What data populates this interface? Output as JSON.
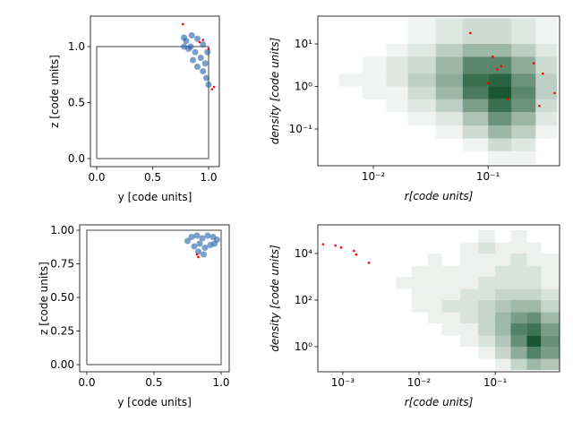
{
  "chart_data": [
    {
      "type": "scatter",
      "xlabel": "y [code units]",
      "ylabel": "z [code units]",
      "xlim": [
        -0.056,
        1.096
      ],
      "ylim": [
        -0.072,
        1.272
      ],
      "xticks": [
        {
          "value": 0,
          "label": "0.0"
        },
        0.5,
        {
          "value": 1,
          "label": "1.0"
        }
      ],
      "yticks": [
        {
          "value": 0,
          "label": "0.0"
        },
        0.5,
        {
          "value": 1,
          "label": "1.0"
        }
      ],
      "series": [
        {
          "style": "line",
          "color": "#808080",
          "x": [
            0,
            1,
            1,
            0,
            0
          ],
          "y": [
            0,
            0,
            1,
            1,
            0
          ]
        },
        {
          "style": "points",
          "color": "#1f5fa8",
          "x": [
            0.78,
            0.8,
            0.85,
            0.9,
            0.95,
            0.82,
            0.88,
            0.93,
            0.97,
            0.9,
            0.95,
            0.98,
            1.0,
            0.86,
            0.84,
            0.99,
            0.78
          ],
          "y": [
            1.08,
            1.05,
            1.1,
            1.07,
            1.02,
            0.98,
            0.95,
            0.9,
            0.85,
            0.82,
            0.78,
            0.72,
            0.66,
            0.88,
            1.0,
            0.95,
            1.0
          ]
        },
        {
          "style": "points",
          "color": "#ff0000",
          "x": [
            0.77,
            0.95,
            0.92,
            1.03,
            1.05,
            1.0
          ],
          "y": [
            1.2,
            1.06,
            1.04,
            0.62,
            0.64,
            0.98
          ]
        }
      ]
    },
    {
      "type": "hist2d",
      "xlabel": "r[code units]",
      "ylabel": "density [code units]",
      "axis_label_style": "italic",
      "xscale": "log",
      "yscale": "log",
      "xlim": [
        0.00328,
        0.42
      ],
      "ylim": [
        0.0137,
        45
      ],
      "xticks": [
        {
          "value": 0.01,
          "label": "10⁻²"
        },
        {
          "value": 0.1,
          "label": "10⁻¹"
        }
      ],
      "yticks": [
        {
          "value": 0.1,
          "label": "10⁻¹"
        },
        {
          "value": 1,
          "label": "10⁰"
        },
        {
          "value": 10,
          "label": "10¹"
        }
      ],
      "color": "#00441b",
      "xbins": [
        0.0035,
        0.005,
        0.008,
        0.013,
        0.02,
        0.035,
        0.06,
        0.1,
        0.16,
        0.26,
        0.4
      ],
      "ybins": [
        0.015,
        0.03,
        0.06,
        0.12,
        0.25,
        0.5,
        1,
        2,
        5,
        10,
        40
      ],
      "counts": [
        [
          0,
          0,
          0,
          0,
          0,
          0,
          0,
          1,
          1,
          0
        ],
        [
          0,
          0,
          0,
          0,
          0,
          0,
          1,
          3,
          2,
          0
        ],
        [
          0,
          0,
          0,
          0,
          0,
          1,
          3,
          6,
          4,
          1
        ],
        [
          0,
          0,
          0,
          0,
          1,
          2,
          5,
          9,
          6,
          2
        ],
        [
          0,
          0,
          0,
          1,
          2,
          4,
          8,
          12,
          9,
          3
        ],
        [
          0,
          0,
          1,
          1,
          3,
          6,
          11,
          14,
          10,
          4
        ],
        [
          0,
          1,
          1,
          2,
          4,
          7,
          12,
          13,
          9,
          4
        ],
        [
          0,
          0,
          1,
          2,
          3,
          6,
          10,
          10,
          7,
          3
        ],
        [
          0,
          0,
          0,
          1,
          2,
          4,
          6,
          6,
          4,
          2
        ],
        [
          0,
          0,
          0,
          0,
          1,
          2,
          3,
          3,
          2,
          1
        ]
      ],
      "series": [
        {
          "style": "points",
          "color": "#ff0000",
          "x": [
            0.07,
            0.11,
            0.12,
            0.13,
            0.1,
            0.15,
            0.3,
            0.25,
            0.38,
            0.28
          ],
          "y": [
            18,
            5,
            2.5,
            3,
            1.2,
            0.5,
            2,
            3.5,
            0.7,
            0.35
          ]
        }
      ]
    },
    {
      "type": "scatter",
      "xlabel": "y [code units]",
      "ylabel": "z [code units]",
      "xlim": [
        -0.053,
        1.06
      ],
      "ylim": [
        -0.053,
        1.04
      ],
      "xticks": [
        {
          "value": 0,
          "label": "0.0"
        },
        0.5,
        {
          "value": 1,
          "label": "1.0"
        }
      ],
      "yticks": [
        {
          "value": 0,
          "label": "0.00"
        },
        0.25,
        {
          "value": 0.5,
          "label": "0.50"
        },
        0.75,
        {
          "value": 1,
          "label": "1.00"
        }
      ],
      "series": [
        {
          "style": "line",
          "color": "#808080",
          "x": [
            0,
            1,
            1,
            0,
            0
          ],
          "y": [
            0,
            0,
            1,
            1,
            0
          ]
        },
        {
          "style": "points",
          "color": "#1f5fa8",
          "x": [
            0.75,
            0.78,
            0.82,
            0.86,
            0.9,
            0.94,
            0.97,
            0.8,
            0.84,
            0.88,
            0.92,
            0.83,
            0.87,
            0.95
          ],
          "y": [
            0.92,
            0.95,
            0.96,
            0.94,
            0.96,
            0.95,
            0.93,
            0.88,
            0.9,
            0.87,
            0.89,
            0.84,
            0.82,
            0.9
          ]
        },
        {
          "style": "points",
          "color": "#ff0000",
          "x": [
            0.82,
            0.83
          ],
          "y": [
            0.82,
            0.8
          ]
        }
      ]
    },
    {
      "type": "hist2d",
      "xlabel": "r[code units]",
      "ylabel": "density [code units]",
      "axis_label_style": "italic",
      "xscale": "log",
      "yscale": "log",
      "xlim": [
        0.00047,
        0.7
      ],
      "ylim": [
        0.084,
        170000
      ],
      "xticks": [
        {
          "value": 0.001,
          "label": "10⁻³"
        },
        {
          "value": 0.01,
          "label": "10⁻²"
        },
        {
          "value": 0.1,
          "label": "10⁻¹"
        }
      ],
      "yticks": [
        {
          "value": 1,
          "label": "10⁰"
        },
        {
          "value": 100,
          "label": "10²"
        },
        {
          "value": 10000,
          "label": "10⁴"
        }
      ],
      "color": "#00441b",
      "xbins": [
        0.005,
        0.008,
        0.013,
        0.02,
        0.035,
        0.06,
        0.1,
        0.16,
        0.26,
        0.4,
        0.7
      ],
      "ybins": [
        0.1,
        0.3,
        1,
        3,
        10,
        30,
        100,
        300,
        1000,
        3000,
        10000,
        30000,
        100000
      ],
      "counts": [
        [
          0,
          0,
          0,
          0,
          0,
          0,
          1,
          3,
          5,
          4
        ],
        [
          0,
          0,
          0,
          0,
          0,
          1,
          3,
          6,
          9,
          7
        ],
        [
          0,
          0,
          0,
          0,
          1,
          2,
          4,
          8,
          12,
          8
        ],
        [
          0,
          0,
          0,
          1,
          1,
          3,
          5,
          9,
          10,
          7
        ],
        [
          0,
          0,
          1,
          1,
          2,
          3,
          5,
          7,
          8,
          5
        ],
        [
          0,
          1,
          1,
          2,
          2,
          3,
          4,
          5,
          5,
          3
        ],
        [
          0,
          1,
          1,
          1,
          2,
          2,
          3,
          3,
          3,
          2
        ],
        [
          1,
          1,
          1,
          1,
          1,
          2,
          2,
          2,
          2,
          1
        ],
        [
          0,
          1,
          1,
          1,
          1,
          1,
          2,
          2,
          2,
          1
        ],
        [
          0,
          0,
          1,
          0,
          1,
          1,
          1,
          2,
          1,
          1
        ],
        [
          0,
          0,
          0,
          0,
          1,
          2,
          1,
          1,
          1,
          0
        ],
        [
          0,
          0,
          0,
          0,
          0,
          1,
          0,
          1,
          0,
          0
        ]
      ],
      "series": [
        {
          "style": "points",
          "color": "#ff0000",
          "x": [
            0.00055,
            0.0008,
            0.00095,
            0.0014,
            0.0015,
            0.0022
          ],
          "y": [
            25000,
            22000,
            18000,
            13000,
            9000,
            4000
          ]
        }
      ]
    }
  ]
}
